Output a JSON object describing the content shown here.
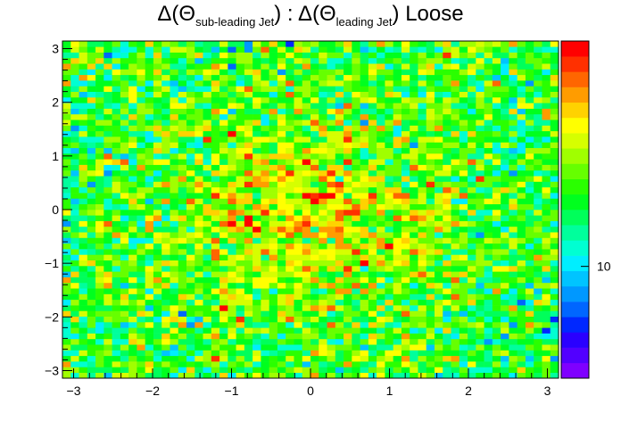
{
  "chart_data": {
    "type": "heatmap",
    "title": {
      "prefix": "Δ(Θ",
      "sub1": "sub-leading Jet",
      "middle": ") : Δ(Θ",
      "sub2": "leading Jet",
      "suffix": ") Loose"
    },
    "xlim": [
      -3.1416,
      3.1416
    ],
    "ylim": [
      -3.1416,
      3.1416
    ],
    "x_ticks": [
      {
        "value": -3,
        "label": "−3"
      },
      {
        "value": -2,
        "label": "−2"
      },
      {
        "value": -1,
        "label": "−1"
      },
      {
        "value": 0,
        "label": "0"
      },
      {
        "value": 1,
        "label": "1"
      },
      {
        "value": 2,
        "label": "2"
      },
      {
        "value": 3,
        "label": "3"
      }
    ],
    "y_ticks": [
      {
        "value": -3,
        "label": "−3"
      },
      {
        "value": -2,
        "label": "−2"
      },
      {
        "value": -1,
        "label": "−1"
      },
      {
        "value": 0,
        "label": "0"
      },
      {
        "value": 1,
        "label": "1"
      },
      {
        "value": 2,
        "label": "2"
      },
      {
        "value": 3,
        "label": "3"
      }
    ],
    "bins": {
      "nx": 60,
      "ny": 60
    },
    "z_scale": "log",
    "z_range": [
      6,
      28
    ],
    "z_tick": {
      "value": 10,
      "label": "10"
    },
    "typical_level": 14,
    "peak_level": 24,
    "palette": [
      "#7f00ff",
      "#5200ff",
      "#2a00ff",
      "#0028ff",
      "#0066ff",
      "#0098ff",
      "#00c4ff",
      "#00eeff",
      "#00ffd2",
      "#00ff9c",
      "#00ff5a",
      "#00ff1e",
      "#2aff00",
      "#66ff00",
      "#a0ff00",
      "#d6ff00",
      "#ffff00",
      "#ffd200",
      "#ff9c00",
      "#ff6600",
      "#ff3000",
      "#ff0000"
    ]
  }
}
